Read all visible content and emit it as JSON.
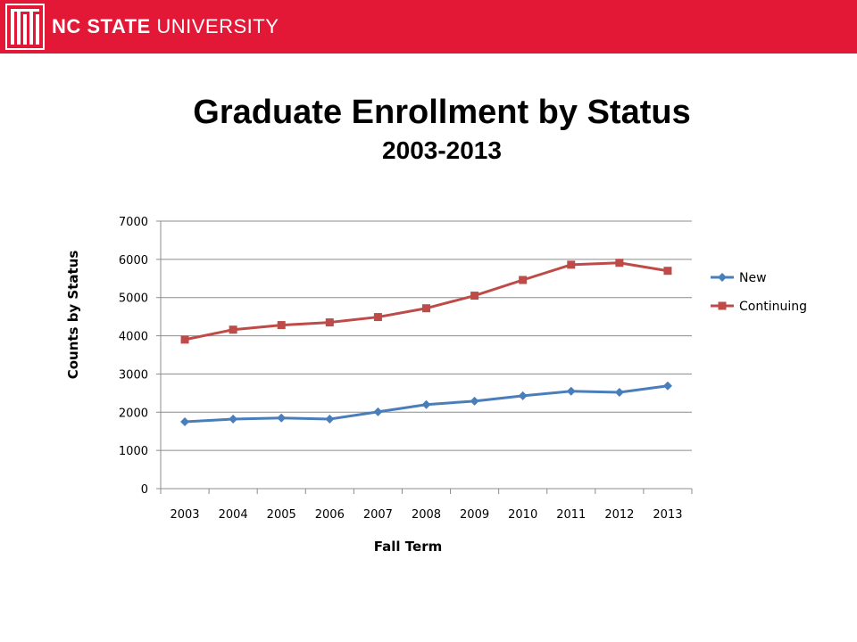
{
  "header": {
    "brand_primary": "NC STATE",
    "brand_secondary": "UNIVERSITY",
    "logo_icon": "nc-state-brick-logo-icon",
    "accent_color": "#e21836"
  },
  "chart_data": {
    "type": "line",
    "title": "Graduate Enrollment by Status",
    "subtitle": "2003-2013",
    "xlabel": "Fall Term",
    "ylabel": "Counts by Status",
    "categories": [
      "2003",
      "2004",
      "2005",
      "2006",
      "2007",
      "2008",
      "2009",
      "2010",
      "2011",
      "2012",
      "2013"
    ],
    "ylim": [
      0,
      7000
    ],
    "yticks": [
      0,
      1000,
      2000,
      3000,
      4000,
      5000,
      6000,
      7000
    ],
    "grid": true,
    "legend_position": "right",
    "series": [
      {
        "name": "New",
        "color": "#4a7ebb",
        "marker": "diamond",
        "values": [
          1750,
          1820,
          1850,
          1820,
          2010,
          2200,
          2290,
          2430,
          2550,
          2520,
          2690
        ]
      },
      {
        "name": "Continuing",
        "color": "#be4b48",
        "marker": "square",
        "values": [
          3900,
          4160,
          4280,
          4350,
          4490,
          4720,
          5050,
          5460,
          5860,
          5910,
          5700
        ]
      }
    ]
  }
}
